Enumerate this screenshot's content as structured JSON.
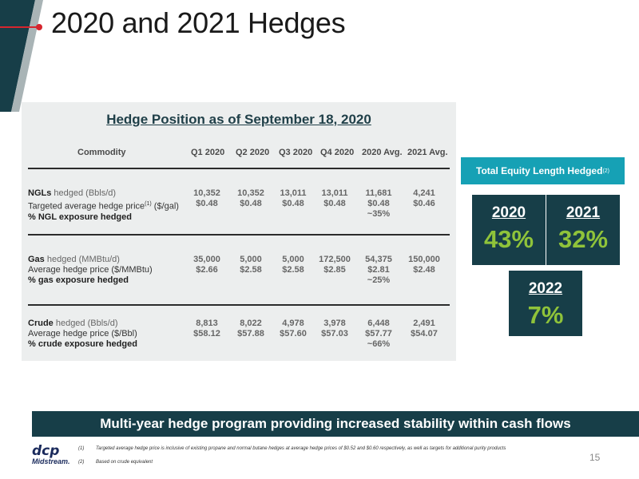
{
  "slide": {
    "title": "2020 and 2021 Hedges",
    "page_number": "15"
  },
  "table": {
    "title": "Hedge Position as of September 18, 2020",
    "headers": [
      "Commodity",
      "Q1 2020",
      "Q2 2020",
      "Q3 2020",
      "Q4 2020",
      "2020 Avg.",
      "2021 Avg."
    ],
    "groups": [
      {
        "label1_bold": "NGLs",
        "label1_rest": " hedged (Bbls/d)",
        "label2": "Targeted average hedge price",
        "label2_sup": "(1)",
        "label2_rest": " ($/gal)",
        "label3": "% NGL exposure hedged",
        "volumes": [
          "10,352",
          "10,352",
          "13,011",
          "13,011",
          "11,681",
          "4,241"
        ],
        "prices": [
          "$0.48",
          "$0.48",
          "$0.48",
          "$0.48",
          "$0.48",
          "$0.46"
        ],
        "exposure_2020": "~35%"
      },
      {
        "label1_bold": "Gas",
        "label1_rest": " hedged (MMBtu/d)",
        "label2": "Average hedge price ($/MMBtu)",
        "label2_sup": "",
        "label2_rest": "",
        "label3": "% gas exposure hedged",
        "volumes": [
          "35,000",
          "5,000",
          "5,000",
          "172,500",
          "54,375",
          "150,000"
        ],
        "prices": [
          "$2.66",
          "$2.58",
          "$2.58",
          "$2.85",
          "$2.81",
          "$2.48"
        ],
        "exposure_2020": "~25%"
      },
      {
        "label1_bold": "Crude",
        "label1_rest": " hedged (Bbls/d)",
        "label2": "Average hedge price ($/Bbl)",
        "label2_sup": "",
        "label2_rest": "",
        "label3": "% crude exposure hedged",
        "volumes": [
          "8,813",
          "8,022",
          "4,978",
          "3,978",
          "6,448",
          "2,491"
        ],
        "prices": [
          "$58.12",
          "$57.88",
          "$57.60",
          "$57.03",
          "$57.77",
          "$54.07"
        ],
        "exposure_2020": "~66%"
      }
    ]
  },
  "equity": {
    "label": "Total Equity Length Hedged",
    "label_sup": "(2)",
    "boxes": [
      {
        "year": "2020",
        "pct": "43%"
      },
      {
        "year": "2021",
        "pct": "32%"
      },
      {
        "year": "2022",
        "pct": "7%"
      }
    ]
  },
  "banner": "Multi-year hedge program providing increased stability within cash flows",
  "logo": {
    "top": "dcp",
    "bottom": "Midstream."
  },
  "footnotes": [
    {
      "num": "(1)",
      "text": "Targeted average hedge price is inclusive of existing propane and normal butane hedges at average hedge prices of $0.52 and $0.60 respectively, as well as targets for additional purity products"
    },
    {
      "num": "(2)",
      "text": "Based on crude equivalent"
    }
  ],
  "colors": {
    "navy": "#173e48",
    "teal": "#16a1b5",
    "green": "#8fc33a",
    "red": "#d6252e"
  }
}
